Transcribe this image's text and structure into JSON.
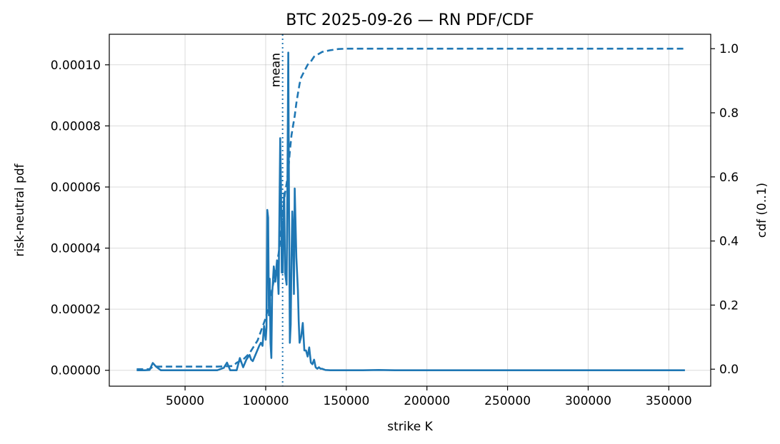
{
  "chart_data": {
    "type": "line",
    "title": "BTC 2025-09-26 — RN PDF/CDF",
    "xlabel": "strike  K",
    "ylabel_left": "risk-neutral pdf",
    "ylabel_right": "cdf  (0..1)",
    "xlim": [
      3000,
      376000
    ],
    "ylim_left": [
      -5.2e-06,
      0.00011
    ],
    "ylim_right": [
      -0.053,
      1.045
    ],
    "x_ticks": [
      50000,
      100000,
      150000,
      200000,
      250000,
      300000,
      350000
    ],
    "x_tick_labels": [
      "50000",
      "100000",
      "150000",
      "200000",
      "250000",
      "300000",
      "350000"
    ],
    "y_left_ticks": [
      0,
      2e-05,
      4e-05,
      6e-05,
      8e-05,
      0.0001
    ],
    "y_left_tick_labels": [
      "0.00000",
      "0.00002",
      "0.00004",
      "0.00006",
      "0.00008",
      "0.00010"
    ],
    "y_right_ticks": [
      0,
      0.2,
      0.4,
      0.6,
      0.8,
      1.0
    ],
    "y_right_tick_labels": [
      "0.0",
      "0.2",
      "0.4",
      "0.6",
      "0.8",
      "1.0"
    ],
    "grid": true,
    "line_color": "#1f77b4",
    "annotation": {
      "text": "mean",
      "x": 110500
    },
    "series": [
      {
        "axis": "left",
        "style": "solid",
        "x": [
          20000,
          25000,
          28000,
          30000,
          32000,
          35000,
          40000,
          50000,
          60000,
          70000,
          74000,
          76000,
          78000,
          80000,
          82000,
          84000,
          86000,
          88000,
          90000,
          91000,
          92000,
          94000,
          96000,
          97000,
          98000,
          99000,
          100000,
          100500,
          101000,
          101500,
          102000,
          102500,
          103000,
          103500,
          104000,
          105000,
          106000,
          107000,
          108000,
          109000,
          109500,
          110000,
          110500,
          111000,
          111500,
          112000,
          113000,
          113500,
          114000,
          114500,
          115000,
          115500,
          116000,
          116500,
          117000,
          117500,
          118000,
          119000,
          120000,
          120500,
          121000,
          122000,
          123000,
          124000,
          125000,
          126000,
          127000,
          128000,
          129000,
          130000,
          131000,
          132000,
          133000,
          134000,
          135000,
          137000,
          140000,
          145000,
          150000,
          160000,
          170000,
          180000,
          200000,
          250000,
          300000,
          360000
        ],
        "values": [
          0,
          0,
          1e-07,
          2.4e-06,
          1.2e-06,
          0,
          0,
          0,
          0,
          0,
          8e-07,
          2.5e-06,
          0,
          0,
          0,
          4e-06,
          1e-06,
          3.5e-06,
          5e-06,
          3.5e-06,
          3e-06,
          5.5e-06,
          8e-06,
          9e-06,
          8e-06,
          1.45e-05,
          1e-05,
          1.4e-05,
          5.25e-05,
          5e-05,
          1.8e-05,
          3e-05,
          9e-06,
          4e-06,
          2.5e-05,
          3.4e-05,
          2.9e-05,
          3.6e-05,
          2.5e-05,
          7.6e-05,
          6e-05,
          3.2e-05,
          3.2e-05,
          5.2e-05,
          5.8e-05,
          3.2e-05,
          2.8e-05,
          6.2e-05,
          0.000104,
          5e-05,
          9e-06,
          1.5e-05,
          3.7e-05,
          5.2e-05,
          4.5e-05,
          2.5e-05,
          5.95e-05,
          3.7e-05,
          2.6e-05,
          1.6e-05,
          9e-06,
          1.1e-05,
          1.55e-05,
          6.5e-06,
          6.5e-06,
          4.5e-06,
          7.5e-06,
          2.5e-06,
          2e-06,
          3.5e-06,
          1e-06,
          5e-07,
          1e-06,
          5e-07,
          5e-07,
          1e-07,
          0,
          0,
          0,
          0,
          1e-07,
          0,
          0,
          0,
          0,
          0
        ]
      },
      {
        "axis": "right",
        "style": "dashed",
        "x": [
          20000,
          28000,
          30000,
          40000,
          50000,
          60000,
          70000,
          80000,
          82000,
          86000,
          90000,
          95000,
          100000,
          102000,
          104000,
          106000,
          108000,
          109000,
          110000,
          111000,
          112000,
          113000,
          114000,
          115000,
          116000,
          117000,
          118000,
          119000,
          120000,
          121000,
          122000,
          124000,
          126000,
          128000,
          130000,
          135000,
          140000,
          145000,
          150000,
          200000,
          250000,
          300000,
          360000
        ],
        "values": [
          0,
          0,
          0.008,
          0.008,
          0.008,
          0.008,
          0.008,
          0.01,
          0.02,
          0.03,
          0.05,
          0.09,
          0.16,
          0.2,
          0.25,
          0.3,
          0.36,
          0.4,
          0.46,
          0.51,
          0.55,
          0.58,
          0.62,
          0.68,
          0.73,
          0.76,
          0.79,
          0.83,
          0.86,
          0.89,
          0.91,
          0.93,
          0.95,
          0.96,
          0.975,
          0.99,
          0.995,
          0.999,
          1.0,
          1.0,
          1.0,
          1.0,
          1.0
        ]
      }
    ]
  }
}
